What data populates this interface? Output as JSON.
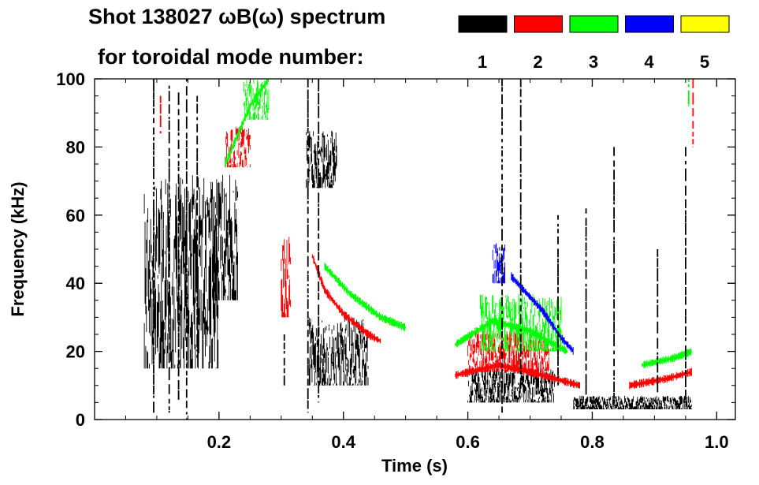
{
  "chart_data": {
    "type": "heatmap",
    "title": "Shot 138027 ωB(ω) spectrum",
    "subtitle": "for toroidal mode number:",
    "xlabel": "Time (s)",
    "ylabel": "Frequency (kHz)",
    "xlim": [
      0.0,
      1.03
    ],
    "ylim": [
      0,
      100
    ],
    "x_ticks": [
      {
        "value": 0.2,
        "label": "0.2"
      },
      {
        "value": 0.4,
        "label": "0.4"
      },
      {
        "value": 0.6,
        "label": "0.6"
      },
      {
        "value": 0.8,
        "label": "0.8"
      },
      {
        "value": 1.0,
        "label": "1.0"
      }
    ],
    "y_ticks": [
      {
        "value": 0,
        "label": "0"
      },
      {
        "value": 20,
        "label": "20"
      },
      {
        "value": 40,
        "label": "40"
      },
      {
        "value": 60,
        "label": "60"
      },
      {
        "value": 80,
        "label": "80"
      },
      {
        "value": 100,
        "label": "100"
      }
    ],
    "legend": [
      {
        "mode": "1",
        "color": "#000000"
      },
      {
        "mode": "2",
        "color": "#ff0000"
      },
      {
        "mode": "3",
        "color": "#00ff00"
      },
      {
        "mode": "4",
        "color": "#0000ff"
      },
      {
        "mode": "5",
        "color": "#ffff00"
      }
    ],
    "regions": [
      {
        "mode": "1",
        "t0": 0.08,
        "t1": 0.2,
        "f0": 15,
        "f1": 72
      },
      {
        "mode": "1",
        "t0": 0.19,
        "t1": 0.23,
        "f0": 35,
        "f1": 72
      },
      {
        "mode": "1",
        "t0": 0.34,
        "t1": 0.39,
        "f0": 68,
        "f1": 85
      },
      {
        "mode": "1",
        "t0": 0.345,
        "t1": 0.44,
        "f0": 10,
        "f1": 30
      },
      {
        "mode": "1",
        "t0": 0.6,
        "t1": 0.74,
        "f0": 5,
        "f1": 15
      },
      {
        "mode": "1",
        "t0": 0.77,
        "t1": 0.96,
        "f0": 3,
        "f1": 7
      },
      {
        "mode": "2",
        "t0": 0.21,
        "t1": 0.25,
        "f0": 74,
        "f1": 86
      },
      {
        "mode": "2",
        "t0": 0.3,
        "t1": 0.315,
        "f0": 30,
        "f1": 55
      },
      {
        "mode": "2",
        "t0": 0.6,
        "t1": 0.73,
        "f0": 14,
        "f1": 26
      },
      {
        "mode": "3",
        "t0": 0.24,
        "t1": 0.28,
        "f0": 88,
        "f1": 100
      },
      {
        "mode": "3",
        "t0": 0.62,
        "t1": 0.75,
        "f0": 20,
        "f1": 37
      },
      {
        "mode": "4",
        "t0": 0.64,
        "t1": 0.66,
        "f0": 40,
        "f1": 52
      }
    ],
    "traces": [
      {
        "mode": "2",
        "points": [
          [
            0.35,
            48
          ],
          [
            0.37,
            38
          ],
          [
            0.4,
            31
          ],
          [
            0.44,
            25
          ],
          [
            0.46,
            23
          ]
        ]
      },
      {
        "mode": "3",
        "points": [
          [
            0.37,
            45
          ],
          [
            0.41,
            37
          ],
          [
            0.46,
            30
          ],
          [
            0.5,
            27
          ]
        ]
      },
      {
        "mode": "3",
        "points": [
          [
            0.21,
            75
          ],
          [
            0.25,
            92
          ],
          [
            0.28,
            100
          ]
        ]
      },
      {
        "mode": "4",
        "points": [
          [
            0.67,
            42
          ],
          [
            0.72,
            32
          ],
          [
            0.75,
            24
          ],
          [
            0.77,
            20
          ]
        ]
      },
      {
        "mode": "3",
        "points": [
          [
            0.58,
            22
          ],
          [
            0.64,
            29
          ],
          [
            0.7,
            26
          ],
          [
            0.76,
            20
          ]
        ]
      },
      {
        "mode": "2",
        "points": [
          [
            0.58,
            13
          ],
          [
            0.65,
            16
          ],
          [
            0.72,
            13
          ],
          [
            0.78,
            10
          ]
        ]
      },
      {
        "mode": "2",
        "points": [
          [
            0.86,
            10
          ],
          [
            0.92,
            12
          ],
          [
            0.96,
            14
          ]
        ]
      },
      {
        "mode": "3",
        "points": [
          [
            0.88,
            16
          ],
          [
            0.93,
            18
          ],
          [
            0.96,
            20
          ]
        ]
      }
    ],
    "streaks": [
      {
        "mode": "1",
        "t": 0.095,
        "f0": 2,
        "f1": 100
      },
      {
        "mode": "1",
        "t": 0.12,
        "f0": 2,
        "f1": 98
      },
      {
        "mode": "1",
        "t": 0.135,
        "f0": 5,
        "f1": 96
      },
      {
        "mode": "1",
        "t": 0.148,
        "f0": 0,
        "f1": 100
      },
      {
        "mode": "1",
        "t": 0.165,
        "f0": 20,
        "f1": 95
      },
      {
        "mode": "1",
        "t": 0.305,
        "f0": 10,
        "f1": 25
      },
      {
        "mode": "1",
        "t": 0.343,
        "f0": 2,
        "f1": 100
      },
      {
        "mode": "1",
        "t": 0.36,
        "f0": 5,
        "f1": 100
      },
      {
        "mode": "1",
        "t": 0.655,
        "f0": 2,
        "f1": 100
      },
      {
        "mode": "1",
        "t": 0.685,
        "f0": 10,
        "f1": 100
      },
      {
        "mode": "1",
        "t": 0.745,
        "f0": 10,
        "f1": 60
      },
      {
        "mode": "1",
        "t": 0.79,
        "f0": 5,
        "f1": 62
      },
      {
        "mode": "1",
        "t": 0.835,
        "f0": 5,
        "f1": 80
      },
      {
        "mode": "1",
        "t": 0.905,
        "f0": 8,
        "f1": 50
      },
      {
        "mode": "1",
        "t": 0.95,
        "f0": 5,
        "f1": 80
      },
      {
        "mode": "2",
        "t": 0.962,
        "f0": 80,
        "f1": 100
      },
      {
        "mode": "2",
        "t": 0.106,
        "f0": 84,
        "f1": 95
      },
      {
        "mode": "3",
        "t": 0.955,
        "f0": 92,
        "f1": 100
      }
    ]
  }
}
